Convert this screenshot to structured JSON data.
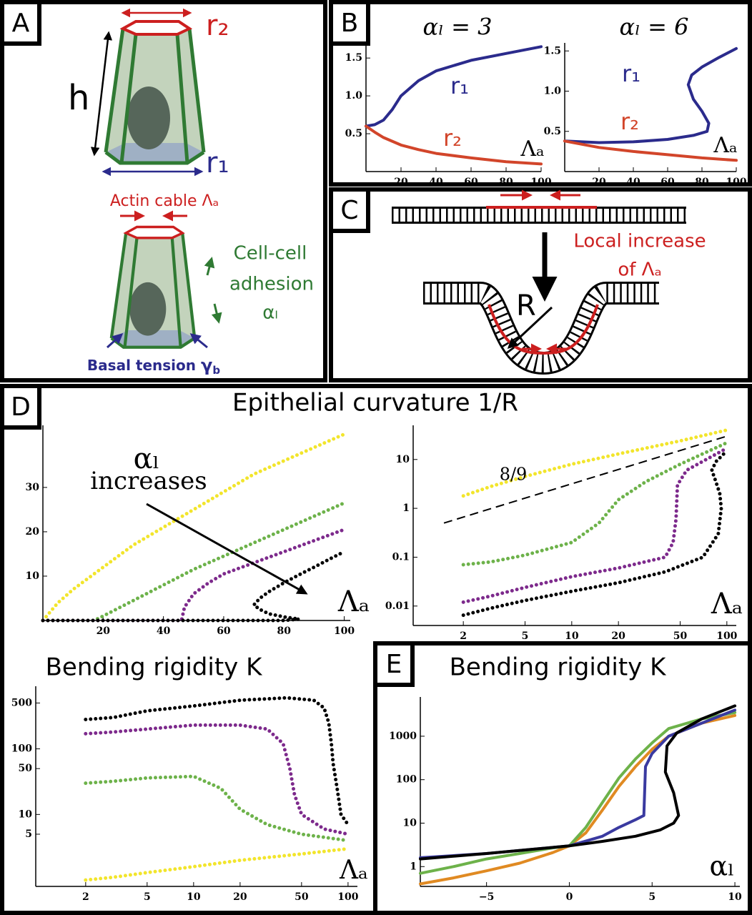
{
  "panel_labels": [
    "A",
    "B",
    "C",
    "D",
    "E"
  ],
  "diagram_a": {
    "r2": "r₂",
    "h": "h",
    "r1": "r₁",
    "actin": "Actin cable Λₐ",
    "adhesion": [
      "Cell-cell",
      "adhesion",
      "αₗ"
    ],
    "basal": "Basal tension ",
    "basal_symbol": "γ",
    "basal_sub": "b"
  },
  "diagram_c": {
    "note": [
      "Local increase",
      "of Λₐ"
    ],
    "radius": "R"
  },
  "panel_d_title": "Epithelial curvature 1/R",
  "chart_data": [
    {
      "type": "line",
      "title": "αₗ = 3",
      "xlim": [
        0,
        100
      ],
      "xticks": [
        20,
        40,
        60,
        80,
        100
      ],
      "ylim": [
        0,
        1.7
      ],
      "yticks": [
        0.5,
        {
          "value": 1,
          "label": "1.0"
        },
        1.5
      ],
      "annotations": [
        "Λₐ"
      ],
      "style": "solid",
      "series": [
        {
          "name": "r₁",
          "color": "#2b2b8c",
          "x": [
            0,
            5,
            10,
            15,
            20,
            30,
            40,
            60,
            80,
            100
          ],
          "values": [
            0.6,
            0.62,
            0.68,
            0.82,
            1.0,
            1.2,
            1.33,
            1.47,
            1.56,
            1.65
          ]
        },
        {
          "name": "r₂",
          "color": "#d2452a",
          "x": [
            0,
            5,
            10,
            20,
            30,
            40,
            60,
            80,
            100
          ],
          "values": [
            0.6,
            0.52,
            0.45,
            0.35,
            0.29,
            0.24,
            0.18,
            0.13,
            0.1
          ]
        }
      ]
    },
    {
      "type": "line",
      "title": "αₗ = 6",
      "xlim": [
        0,
        100
      ],
      "xticks": [
        20,
        40,
        60,
        80,
        100
      ],
      "ylim": [
        0,
        1.6
      ],
      "yticks": [
        0.5,
        {
          "value": 1,
          "label": "1.0"
        },
        1.5
      ],
      "annotations": [
        "Λₐ"
      ],
      "style": "solid",
      "series": [
        {
          "name": "r₁",
          "color": "#2b2b8c",
          "x": [
            0,
            20,
            40,
            60,
            75,
            83,
            84,
            80,
            75,
            72,
            74,
            80,
            90,
            100
          ],
          "values": [
            0.38,
            0.36,
            0.37,
            0.4,
            0.45,
            0.5,
            0.6,
            0.75,
            0.9,
            1.08,
            1.2,
            1.3,
            1.42,
            1.53
          ]
        },
        {
          "name": "r₂",
          "color": "#d2452a",
          "x": [
            0,
            20,
            40,
            60,
            80,
            100
          ],
          "values": [
            0.38,
            0.3,
            0.25,
            0.21,
            0.17,
            0.14
          ]
        }
      ]
    },
    {
      "type": "line",
      "xlim": [
        0,
        102
      ],
      "xticks": [
        20,
        40,
        60,
        80,
        100
      ],
      "ylim": [
        0,
        44
      ],
      "yticks": [
        10,
        20,
        30
      ],
      "annotations": [
        "αₗ",
        "increases",
        "Λₐ"
      ],
      "style": "dotted",
      "series": [
        {
          "color": "#f2e52c",
          "x": [
            0,
            5,
            10,
            20,
            30,
            40,
            50,
            60,
            70,
            80,
            90,
            100
          ],
          "values": [
            0,
            4,
            7,
            12,
            17,
            21,
            25,
            29,
            33,
            36,
            39,
            42
          ]
        },
        {
          "color": "#6db24a",
          "x": [
            0,
            10,
            17,
            20,
            30,
            40,
            50,
            60,
            70,
            80,
            90,
            100
          ],
          "values": [
            0,
            0,
            0,
            1,
            4.5,
            8,
            11.5,
            14.5,
            17.5,
            20.5,
            23.5,
            26.5
          ]
        },
        {
          "color": "#7d2a8c",
          "x": [
            0,
            20,
            40,
            46,
            47,
            50,
            55,
            60,
            70,
            80,
            90,
            100
          ],
          "values": [
            0,
            0,
            0,
            0,
            3,
            6,
            8.5,
            10.5,
            13,
            15.5,
            18,
            20.5
          ]
        },
        {
          "color": "#000000",
          "x": [
            0,
            20,
            40,
            60,
            80,
            85,
            80,
            75,
            72,
            70,
            72,
            75,
            80,
            85,
            90,
            95,
            100
          ],
          "values": [
            0,
            0,
            0,
            0,
            0,
            0.3,
            0.8,
            1.5,
            2.5,
            3.5,
            5,
            6.5,
            8.5,
            10.3,
            12,
            13.8,
            15.5
          ]
        }
      ]
    },
    {
      "type": "line",
      "xscale": "log",
      "yscale": "log",
      "xlim": [
        0.95,
        115
      ],
      "xticks": [
        2,
        5,
        10,
        20,
        50,
        100
      ],
      "ylim": [
        0.004,
        50
      ],
      "yticks": [
        0.01,
        0.1,
        1,
        10
      ],
      "annotations": [
        "8/9",
        "Λₐ"
      ],
      "style": "dotted",
      "reference_line": {
        "x": [
          1.5,
          100
        ],
        "values": [
          0.5,
          30
        ]
      },
      "series": [
        {
          "color": "#f2e52c",
          "x": [
            2,
            3,
            5,
            10,
            20,
            50,
            100
          ],
          "values": [
            1.8,
            2.8,
            4.5,
            8,
            13,
            24,
            40
          ]
        },
        {
          "color": "#6db24a",
          "x": [
            2,
            3,
            5,
            10,
            15,
            20,
            30,
            50,
            100
          ],
          "values": [
            0.07,
            0.08,
            0.11,
            0.2,
            0.5,
            1.5,
            3.5,
            8,
            22
          ]
        },
        {
          "color": "#7d2a8c",
          "x": [
            2,
            3,
            5,
            10,
            20,
            40,
            45,
            47,
            48,
            55,
            100
          ],
          "values": [
            0.012,
            0.016,
            0.024,
            0.04,
            0.06,
            0.1,
            0.2,
            0.6,
            3,
            6,
            17
          ]
        },
        {
          "color": "#000000",
          "x": [
            2,
            3,
            5,
            10,
            20,
            40,
            70,
            88,
            92,
            90,
            85,
            80,
            85,
            100
          ],
          "values": [
            0.0065,
            0.009,
            0.013,
            0.02,
            0.03,
            0.05,
            0.1,
            0.3,
            1,
            2,
            3.5,
            6,
            9,
            15
          ]
        }
      ]
    },
    {
      "type": "line",
      "title": "Bending rigidity  K",
      "xscale": "log",
      "yscale": "log",
      "xlim": [
        0.95,
        115
      ],
      "xticks": [
        2,
        5,
        10,
        20,
        50,
        100
      ],
      "ylim": [
        0.8,
        900
      ],
      "yticks": [
        5,
        10,
        50,
        100,
        500
      ],
      "annotations": [
        "Λₐ"
      ],
      "style": "dotted",
      "series": [
        {
          "color": "#000000",
          "x": [
            2,
            3,
            5,
            10,
            20,
            40,
            60,
            70,
            75,
            78,
            80,
            85,
            90,
            100
          ],
          "values": [
            280,
            300,
            380,
            450,
            550,
            600,
            550,
            420,
            250,
            120,
            60,
            25,
            10,
            7
          ]
        },
        {
          "color": "#7d2a8c",
          "x": [
            2,
            3,
            5,
            10,
            20,
            30,
            38,
            42,
            45,
            50,
            70,
            100
          ],
          "values": [
            170,
            180,
            200,
            230,
            230,
            200,
            120,
            50,
            20,
            10,
            6,
            5
          ]
        },
        {
          "color": "#6db24a",
          "x": [
            2,
            3,
            5,
            10,
            15,
            20,
            30,
            50,
            100
          ],
          "values": [
            30,
            32,
            36,
            38,
            25,
            12,
            7,
            5,
            4
          ]
        },
        {
          "color": "#f2e52c",
          "x": [
            2,
            3,
            5,
            10,
            20,
            50,
            100
          ],
          "values": [
            1,
            1.1,
            1.3,
            1.6,
            2,
            2.5,
            3
          ]
        }
      ]
    },
    {
      "type": "line",
      "title": "Bending rigidity K",
      "xlim": [
        -9,
        10.3
      ],
      "xticks": [
        {
          "value": -5,
          "label": "−5"
        },
        0,
        5,
        10
      ],
      "yscale": "log",
      "ylim": [
        0.35,
        8000
      ],
      "yticks": [
        1,
        10,
        100,
        1000
      ],
      "annotations": [
        "αₗ"
      ],
      "style": "solid",
      "series": [
        {
          "color": "#e08a22",
          "x": [
            -9,
            -7,
            -5,
            -3,
            -1,
            0,
            1,
            2,
            3,
            4,
            5,
            6,
            8,
            10
          ],
          "values": [
            0.4,
            0.55,
            0.8,
            1.2,
            2.1,
            3,
            6,
            20,
            70,
            200,
            500,
            1000,
            2000,
            3000
          ]
        },
        {
          "color": "#6db24a",
          "x": [
            -9,
            -7,
            -5,
            -3,
            -1,
            0,
            1,
            2,
            3,
            4,
            5,
            6,
            8,
            10
          ],
          "values": [
            0.7,
            1,
            1.5,
            2,
            2.7,
            3,
            8,
            30,
            110,
            300,
            700,
            1500,
            2500,
            3500
          ]
        },
        {
          "color": "#3a3aa0",
          "x": [
            -9,
            -5,
            0,
            2,
            3,
            4,
            4.5,
            4.6,
            5,
            6,
            8,
            10
          ],
          "values": [
            1.6,
            2,
            3,
            5,
            8,
            12,
            15,
            200,
            400,
            1000,
            2000,
            4000
          ]
        },
        {
          "color": "#000000",
          "x": [
            -9,
            -5,
            0,
            2,
            4,
            5.5,
            6.3,
            6.6,
            6.3,
            5.8,
            5.9,
            6.5,
            8,
            10
          ],
          "values": [
            1.5,
            2,
            3,
            3.8,
            5,
            7,
            10,
            15,
            50,
            150,
            600,
            1200,
            2500,
            5000
          ]
        }
      ]
    }
  ]
}
